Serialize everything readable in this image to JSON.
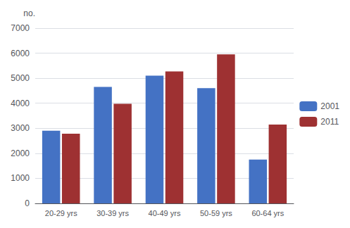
{
  "chart_data": {
    "type": "bar",
    "ylabel": "no.",
    "categories": [
      "20-29 yrs",
      "30-39 yrs",
      "40-49 yrs",
      "50-59 yrs",
      "60-64 yrs"
    ],
    "series": [
      {
        "name": "2001",
        "color": "#4472C4",
        "values": [
          2900,
          4650,
          5100,
          4600,
          1750
        ]
      },
      {
        "name": "2011",
        "color": "#9E3132",
        "values": [
          2780,
          3980,
          5270,
          5950,
          3150
        ]
      }
    ],
    "ylim": [
      0,
      7000
    ],
    "yticks": [
      0,
      1000,
      2000,
      3000,
      4000,
      5000,
      6000,
      7000
    ],
    "grid": true,
    "legend": "right"
  }
}
